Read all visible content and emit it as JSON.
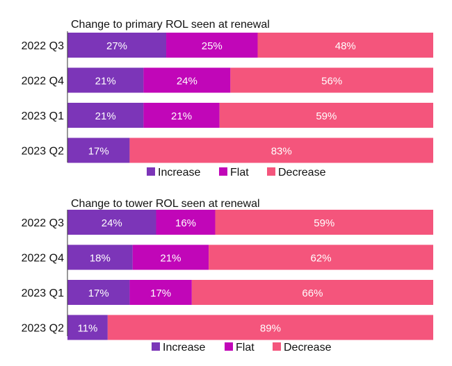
{
  "colors": {
    "increase": "#7c35b8",
    "flat": "#c106b8",
    "decrease": "#f4557c",
    "axis": "#333333",
    "text": "#111111",
    "segment_text": "#ffffff"
  },
  "chart_data": [
    {
      "type": "bar",
      "orientation": "horizontal",
      "stacked": true,
      "title": "Change to primary ROL seen at renewal",
      "categories": [
        "2022 Q3",
        "2022 Q4",
        "2023 Q1",
        "2023 Q2"
      ],
      "series": [
        {
          "name": "Increase",
          "key": "increase",
          "values": [
            27,
            21,
            21,
            17
          ],
          "labels": [
            "27%",
            "21%",
            "21%",
            "17%"
          ]
        },
        {
          "name": "Flat",
          "key": "flat",
          "values": [
            25,
            24,
            21,
            0
          ],
          "labels": [
            "25%",
            "24%",
            "21%",
            ""
          ]
        },
        {
          "name": "Decrease",
          "key": "decrease",
          "values": [
            48,
            56,
            59,
            83
          ],
          "labels": [
            "48%",
            "56%",
            "59%",
            "83%"
          ]
        }
      ],
      "xlim": [
        0,
        100
      ],
      "legend": [
        "Increase",
        "Flat",
        "Decrease"
      ],
      "legend_position": "bottom"
    },
    {
      "type": "bar",
      "orientation": "horizontal",
      "stacked": true,
      "title": "Change to tower ROL seen at renewal",
      "categories": [
        "2022 Q3",
        "2022 Q4",
        "2023 Q1",
        "2023 Q2"
      ],
      "series": [
        {
          "name": "Increase",
          "key": "increase",
          "values": [
            24,
            18,
            17,
            11
          ],
          "labels": [
            "24%",
            "18%",
            "17%",
            "11%"
          ]
        },
        {
          "name": "Flat",
          "key": "flat",
          "values": [
            16,
            21,
            17,
            0
          ],
          "labels": [
            "16%",
            "21%",
            "17%",
            ""
          ]
        },
        {
          "name": "Decrease",
          "key": "decrease",
          "values": [
            59,
            62,
            66,
            89
          ],
          "labels": [
            "59%",
            "62%",
            "66%",
            "89%"
          ]
        }
      ],
      "xlim": [
        0,
        100
      ],
      "legend": [
        "Increase",
        "Flat",
        "Decrease"
      ],
      "legend_position": "bottom"
    }
  ]
}
